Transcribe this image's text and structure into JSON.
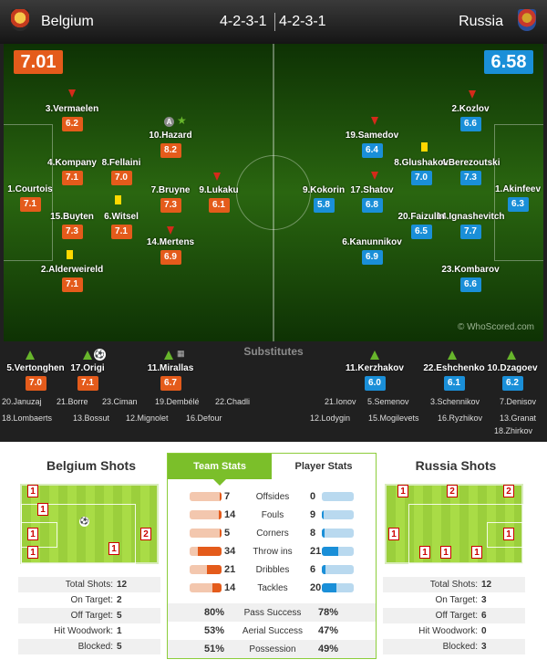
{
  "header": {
    "home_name": "Belgium",
    "away_name": "Russia",
    "home_formation": "4-2-3-1",
    "away_formation": "4-2-3-1"
  },
  "pitch": {
    "home_rating": "7.01",
    "away_rating": "6.58",
    "watermark": "© WhoScored.com",
    "home_players": [
      {
        "name": "1.Courtois",
        "rating": "7.1"
      },
      {
        "name": "2.Alderweireld",
        "rating": "7.1"
      },
      {
        "name": "3.Vermaelen",
        "rating": "6.2"
      },
      {
        "name": "4.Kompany",
        "rating": "7.1"
      },
      {
        "name": "15.Buyten",
        "rating": "7.3"
      },
      {
        "name": "8.Fellaini",
        "rating": "7.0"
      },
      {
        "name": "6.Witsel",
        "rating": "7.1"
      },
      {
        "name": "10.Hazard",
        "rating": "8.2"
      },
      {
        "name": "7.Bruyne",
        "rating": "7.3"
      },
      {
        "name": "14.Mertens",
        "rating": "6.9"
      },
      {
        "name": "9.Lukaku",
        "rating": "6.1"
      }
    ],
    "captain_mark": "A",
    "away_players": [
      {
        "name": "1.Akinfeev",
        "rating": "6.3"
      },
      {
        "name": "2.Kozlov",
        "rating": "6.6"
      },
      {
        "name": "4.Berezoutski",
        "rating": "7.3"
      },
      {
        "name": "14.Ignashevitch",
        "rating": "7.7"
      },
      {
        "name": "23.Kombarov",
        "rating": "6.6"
      },
      {
        "name": "8.Glushakov",
        "rating": "7.0"
      },
      {
        "name": "20.Faizulin",
        "rating": "6.5"
      },
      {
        "name": "19.Samedov",
        "rating": "6.4"
      },
      {
        "name": "17.Shatov",
        "rating": "6.8"
      },
      {
        "name": "6.Kanunnikov",
        "rating": "6.9"
      },
      {
        "name": "9.Kokorin",
        "rating": "5.8"
      }
    ]
  },
  "substitutes": {
    "title": "Substitutes",
    "home_used": [
      {
        "name": "5.Vertonghen",
        "rating": "7.0"
      },
      {
        "name": "17.Origi",
        "rating": "7.1"
      },
      {
        "name": "11.Mirallas",
        "rating": "6.7"
      }
    ],
    "home_unused": [
      "20.Januzaj",
      "21.Borre",
      "23.Ciman",
      "19.Dembélé",
      "22.Chadli",
      "18.Lombaerts",
      "13.Bossut",
      "12.Mignolet",
      "16.Defour"
    ],
    "away_used": [
      {
        "name": "11.Kerzhakov",
        "rating": "6.0"
      },
      {
        "name": "22.Eshchenko",
        "rating": "6.1"
      },
      {
        "name": "10.Dzagoev",
        "rating": "6.2"
      }
    ],
    "away_unused": [
      "21.Ionov",
      "5.Semenov",
      "3.Schennikov",
      "7.Denisov",
      "12.Lodygin",
      "15.Mogilevets",
      "16.Ryzhikov",
      "13.Granat",
      "18.Zhirkov"
    ]
  },
  "shots_home": {
    "title": "Belgium Shots",
    "zones": [
      "1",
      "1",
      "1",
      "1",
      "1",
      "2"
    ],
    "stats": [
      {
        "label": "Total Shots:",
        "value": "12"
      },
      {
        "label": "On Target:",
        "value": "2"
      },
      {
        "label": "Off Target:",
        "value": "5"
      },
      {
        "label": "Hit Woodwork:",
        "value": "1"
      },
      {
        "label": "Blocked:",
        "value": "5"
      }
    ]
  },
  "shots_away": {
    "title": "Russia Shots",
    "zones": [
      "1",
      "2",
      "2",
      "1",
      "1",
      "1",
      "1",
      "1"
    ],
    "stats": [
      {
        "label": "Total Shots:",
        "value": "12"
      },
      {
        "label": "On Target:",
        "value": "3"
      },
      {
        "label": "Off Target:",
        "value": "6"
      },
      {
        "label": "Hit Woodwork:",
        "value": "0"
      },
      {
        "label": "Blocked:",
        "value": "3"
      }
    ]
  },
  "team_stats": {
    "tab_team": "Team Stats",
    "tab_player": "Player Stats",
    "rows": [
      {
        "label": "Offsides",
        "home": "7",
        "away": "0",
        "home_fraction": 0.05,
        "away_fraction": 0.0
      },
      {
        "label": "Fouls",
        "home": "14",
        "away": "9",
        "home_fraction": 0.1,
        "away_fraction": 0.05
      },
      {
        "label": "Corners",
        "home": "5",
        "away": "8",
        "home_fraction": 0.05,
        "away_fraction": 0.08
      },
      {
        "label": "Throw ins",
        "home": "34",
        "away": "21",
        "home_fraction": 0.75,
        "away_fraction": 0.5
      },
      {
        "label": "Dribbles",
        "home": "21",
        "away": "6",
        "home_fraction": 0.45,
        "away_fraction": 0.12
      },
      {
        "label": "Tackles",
        "home": "14",
        "away": "20",
        "home_fraction": 0.3,
        "away_fraction": 0.45
      }
    ],
    "percent_rows": [
      {
        "label": "Pass Success",
        "home": "80%",
        "away": "78%"
      },
      {
        "label": "Aerial Success",
        "home": "53%",
        "away": "47%"
      },
      {
        "label": "Possession",
        "home": "51%",
        "away": "49%"
      }
    ]
  },
  "colors": {
    "home": "#e45b1b",
    "away": "#1a8fd8",
    "accent": "#7bbf2a"
  }
}
